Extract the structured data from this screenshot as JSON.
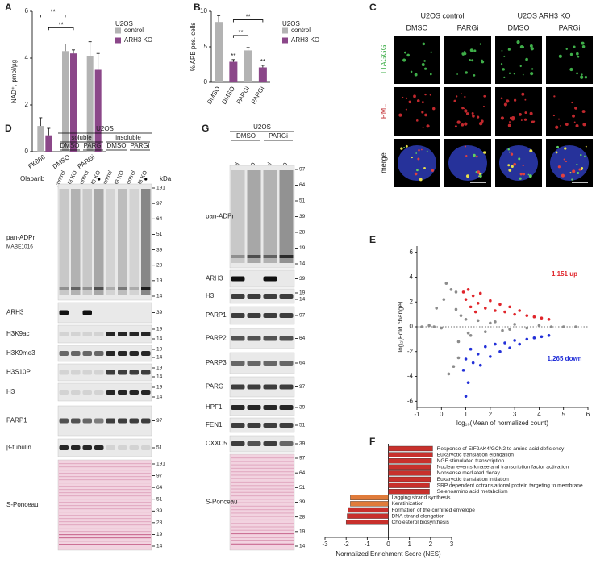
{
  "figure": {
    "panel_labels": [
      "A",
      "B",
      "C",
      "D",
      "E",
      "F",
      "G"
    ]
  },
  "chart_data": [
    {
      "type": "bar",
      "ylabel": "NAD⁺, pmol/µg",
      "categories": [
        "FK866",
        "DMSO",
        "PARGi"
      ],
      "series": [
        {
          "name": "control",
          "color": "#b3b3b3",
          "values": [
            1.1,
            4.3,
            4.1
          ],
          "errors": [
            0.35,
            0.3,
            0.6
          ]
        },
        {
          "name": "ARH3 KO",
          "color": "#8b4789",
          "values": [
            0.7,
            4.2,
            3.5
          ],
          "errors": [
            0.3,
            0.15,
            0.7
          ]
        }
      ],
      "ylim": [
        0,
        6
      ],
      "yticks": [
        0,
        2,
        4,
        6
      ],
      "legend_title": "U2OS",
      "annotations": [
        "**",
        "**"
      ]
    },
    {
      "type": "bar",
      "ylabel": "% APB pos. cells",
      "categories": [
        "DMSO",
        "DMSO",
        "PARGi",
        "PARGi"
      ],
      "series": [
        {
          "name": "control",
          "color": "#b3b3b3",
          "values": [
            8.5,
            null,
            4.5,
            null
          ],
          "errors": [
            0.9,
            null,
            0.4,
            null
          ]
        },
        {
          "name": "ARH3 KO",
          "color": "#8b4789",
          "values": [
            null,
            2.9,
            null,
            2.1
          ],
          "errors": [
            null,
            0.3,
            null,
            0.3
          ]
        }
      ],
      "ylim": [
        0,
        10
      ],
      "yticks": [
        0,
        5,
        10
      ],
      "legend_title": "U2OS",
      "annotations": [
        "**",
        "**",
        "**",
        "**"
      ]
    },
    {
      "type": "scatter",
      "xlabel": "log₁₀(Mean of normalized count)",
      "ylabel": "log₂(Fold change)",
      "series": [
        {
          "color": "#8c8c8c",
          "x": [
            -0.8,
            -0.5,
            -0.3,
            0,
            0.2,
            0.4,
            0.5,
            0.6,
            0.7,
            0.8,
            1.0,
            1.2,
            1.5,
            1.8,
            2.0,
            2.5,
            3.0,
            3.5,
            4.0,
            4.5,
            5.0,
            5.5,
            0.3,
            0.1,
            -0.2,
            0.6,
            0.7,
            1.1,
            2.2,
            2.8
          ],
          "values": [
            0,
            0.1,
            0,
            -0.1,
            3.5,
            3.0,
            -3.2,
            2.8,
            -2.5,
            0.9,
            0.6,
            -0.7,
            0.5,
            -0.4,
            0.3,
            -0.3,
            0.2,
            -0.1,
            0.1,
            0,
            0,
            0,
            -3.8,
            2.2,
            1.5,
            1.4,
            -1.2,
            -0.5,
            0.4,
            -0.2
          ]
        },
        {
          "color": "#e0252b",
          "x": [
            0.9,
            1.0,
            1.1,
            1.2,
            1.3,
            1.5,
            1.6,
            1.8,
            2.0,
            2.2,
            2.4,
            2.6,
            2.8,
            3.0,
            3.2,
            3.5,
            3.8,
            4.1,
            4.4,
            1.4
          ],
          "values": [
            2.8,
            2.2,
            3.0,
            1.6,
            2.5,
            1.9,
            2.7,
            1.5,
            2.1,
            1.3,
            1.8,
            1.2,
            1.6,
            1.0,
            1.3,
            0.9,
            0.8,
            0.7,
            0.6,
            1.2
          ]
        },
        {
          "color": "#2330d8",
          "x": [
            0.9,
            1.0,
            1.1,
            1.2,
            1.3,
            1.5,
            1.6,
            1.8,
            2.0,
            2.2,
            2.4,
            2.6,
            2.8,
            3.0,
            3.2,
            3.5,
            3.8,
            4.1,
            4.4,
            1.0
          ],
          "values": [
            -3.5,
            -2.6,
            -4.5,
            -1.8,
            -2.9,
            -2.2,
            -3.1,
            -1.6,
            -2.4,
            -1.4,
            -2.0,
            -1.3,
            -1.7,
            -1.1,
            -1.4,
            -1.0,
            -0.9,
            -0.8,
            -0.7,
            -5.6
          ]
        }
      ],
      "xlim": [
        -1,
        6
      ],
      "xticks": [
        -1,
        0,
        1,
        2,
        3,
        4,
        5,
        6
      ],
      "ylim": [
        -6.5,
        6.5
      ],
      "yticks": [
        -6,
        -4,
        -2,
        0,
        2,
        4,
        6
      ],
      "annotations": [
        "1,151 up",
        "1,265 down"
      ]
    },
    {
      "type": "hbar",
      "xlabel": "Normalized Enrichment Score (NES)",
      "categories": [
        "Response of EIF2AK4/GCN2 to amino acid deficiency",
        "Eukaryotic translation elongation",
        "NGF stimulated transcription",
        "Nuclear events kinase and transcription factor activation",
        "Nonsense mediated decay",
        "Eukaryotic translation initiation",
        "SRP dependent cotranslational protein targeting to membrane",
        "Selenoamino acid metabolism",
        "Lagging strand synthesis",
        "Keratinization",
        "Formation of the cornified envelope",
        "DNA strand elongation",
        "Cholesterol biosynthesis"
      ],
      "values": [
        2.1,
        2.1,
        2.05,
        2.0,
        2.0,
        2.0,
        1.95,
        1.95,
        -1.8,
        -1.8,
        -1.9,
        -1.95,
        -2.0
      ],
      "colors": [
        "#c8302c",
        "#c8302c",
        "#c8302c",
        "#c8302c",
        "#c8302c",
        "#c8302c",
        "#c8302c",
        "#c8302c",
        "#e07b3a",
        "#e07b3a",
        "#c8302c",
        "#c8302c",
        "#c8302c"
      ],
      "xlim": [
        -3,
        3
      ],
      "xticks": [
        -3,
        -2,
        -1,
        0,
        1,
        2,
        3
      ]
    }
  ],
  "micrographs": {
    "headers": [
      "U2OS control",
      "U2OS ARH3 KO"
    ],
    "columns": [
      "DMSO",
      "PARGi",
      "DMSO",
      "PARGi"
    ],
    "rows": [
      {
        "label": "TTAGGG",
        "color": "#3fae49"
      },
      {
        "label": "PML",
        "color": "#c0282d"
      },
      {
        "label": "merge"
      }
    ]
  },
  "blots": [
    {
      "header": "U2OS",
      "groups": [
        "soluble",
        "insoluble"
      ],
      "treatments": [
        "DMSO",
        "PARGi",
        "DMSO",
        "PARGi"
      ],
      "lanes": [
        "control",
        "ARH3 KO",
        "control",
        "ARH3 KO",
        "control",
        "ARH3 KO",
        "control",
        "ARH3 KO"
      ],
      "olaparib": "Olaparib",
      "unit": "kDa",
      "rows": [
        {
          "label": "pan-ADPr",
          "sublabel": "MABE1016",
          "markers": [
            "191",
            "97",
            "64",
            "51",
            "39",
            "28",
            "19",
            "14"
          ]
        },
        {
          "label": "ARH3",
          "markers": [
            "39"
          ]
        },
        {
          "label": "H3K9ac",
          "markers": [
            "19",
            "14"
          ]
        },
        {
          "label": "H3K9me3",
          "markers": [
            "19",
            "14"
          ]
        },
        {
          "label": "H3S10P",
          "markers": [
            "19",
            "14"
          ]
        },
        {
          "label": "H3",
          "markers": [
            "19",
            "14"
          ]
        },
        {
          "label": "PARP1",
          "markers": [
            "97"
          ]
        },
        {
          "label": "β-tubulin",
          "markers": [
            "51"
          ]
        },
        {
          "label": "S-Ponceau",
          "markers": [
            "191",
            "97",
            "64",
            "51",
            "39",
            "28",
            "19",
            "14"
          ]
        }
      ]
    },
    {
      "header": "U2OS",
      "treatments": [
        "DMSO",
        "PARGi"
      ],
      "lanes": [
        "control",
        "ARH3 KO",
        "control",
        "ARH3 KO"
      ],
      "rows": [
        {
          "label": "pan-ADPr",
          "markers": [
            "97",
            "64",
            "51",
            "39",
            "28",
            "19",
            "14"
          ]
        },
        {
          "label": "ARH3",
          "markers": [
            "39"
          ]
        },
        {
          "label": "H3",
          "markers": [
            "19",
            "14"
          ]
        },
        {
          "label": "PARP1",
          "markers": [
            "97"
          ]
        },
        {
          "label": "PARP2",
          "markers": [
            "64"
          ]
        },
        {
          "label": "PARP3",
          "markers": [
            "64"
          ]
        },
        {
          "label": "PARG",
          "markers": [
            "97"
          ]
        },
        {
          "label": "HPF1",
          "markers": [
            "39"
          ]
        },
        {
          "label": "FEN1",
          "markers": [
            "51"
          ]
        },
        {
          "label": "CXXC5",
          "markers": [
            "39"
          ]
        },
        {
          "label": "S-Ponceau",
          "markers": [
            "97",
            "64",
            "51",
            "39",
            "28",
            "19",
            "14"
          ]
        }
      ]
    }
  ]
}
